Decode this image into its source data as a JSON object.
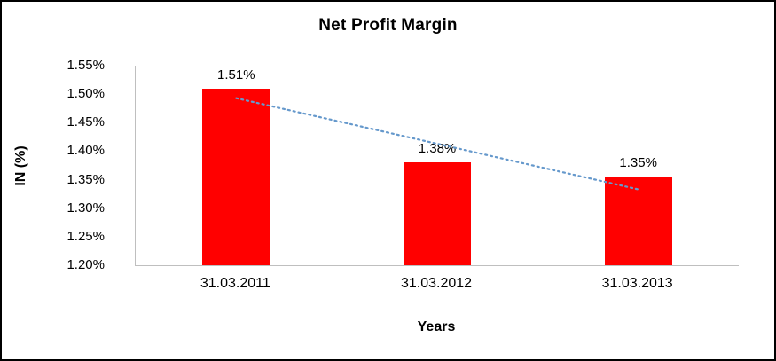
{
  "chart_data": {
    "type": "bar",
    "title": "Net Profit Margin",
    "xlabel": "Years",
    "ylabel": "IN (%)",
    "categories": [
      "31.03.2011",
      "31.03.2012",
      "31.03.2013"
    ],
    "values": [
      1.51,
      1.38,
      1.355
    ],
    "value_labels": [
      "1.51%",
      "1.38%",
      "1.35%"
    ],
    "ylim": [
      1.2,
      1.55
    ],
    "ytick_step": 0.05,
    "ytick_labels": [
      "1.55%",
      "1.50%",
      "1.45%",
      "1.40%",
      "1.35%",
      "1.30%",
      "1.25%",
      "1.20%"
    ],
    "bar_color": "#ff0000",
    "axis_line_color": "#bfbfbf",
    "trendline": {
      "color": "#6699cc",
      "style": "dotted",
      "values": [
        1.493,
        1.413,
        1.333
      ]
    },
    "grid": false,
    "legend": false
  }
}
